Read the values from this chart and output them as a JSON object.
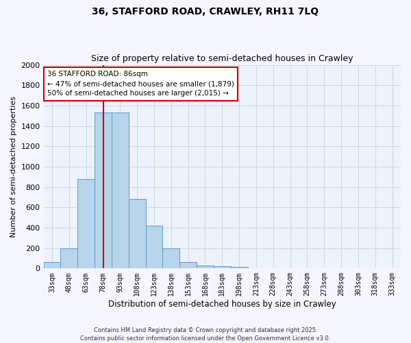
{
  "title1": "36, STAFFORD ROAD, CRAWLEY, RH11 7LQ",
  "title2": "Size of property relative to semi-detached houses in Crawley",
  "xlabel": "Distribution of semi-detached houses by size in Crawley",
  "ylabel": "Number of semi-detached properties",
  "categories": [
    "33sqm",
    "48sqm",
    "63sqm",
    "78sqm",
    "93sqm",
    "108sqm",
    "123sqm",
    "138sqm",
    "153sqm",
    "168sqm",
    "183sqm",
    "198sqm",
    "213sqm",
    "228sqm",
    "243sqm",
    "258sqm",
    "273sqm",
    "288sqm",
    "303sqm",
    "318sqm",
    "333sqm"
  ],
  "values": [
    65,
    200,
    880,
    1530,
    1530,
    680,
    420,
    195,
    60,
    28,
    22,
    18,
    0,
    0,
    0,
    0,
    0,
    0,
    0,
    0,
    0
  ],
  "bar_color": "#b8d4ea",
  "bar_edge_color": "#5a9ec8",
  "grid_color": "#c8d8ec",
  "bg_color": "#eef2fb",
  "annotation_text": "36 STAFFORD ROAD: 86sqm\n← 47% of semi-detached houses are smaller (1,879)\n50% of semi-detached houses are larger (2,015) →",
  "annotation_box_color": "#ffffff",
  "annotation_box_edge": "#cc0000",
  "ylim": [
    0,
    2000
  ],
  "yticks": [
    0,
    200,
    400,
    600,
    800,
    1000,
    1200,
    1400,
    1600,
    1800,
    2000
  ],
  "footer": "Contains HM Land Registry data © Crown copyright and database right 2025.\nContains public sector information licensed under the Open Government Licence v3.0.",
  "red_line_color": "#cc0000",
  "fig_bg": "#f5f5ff"
}
